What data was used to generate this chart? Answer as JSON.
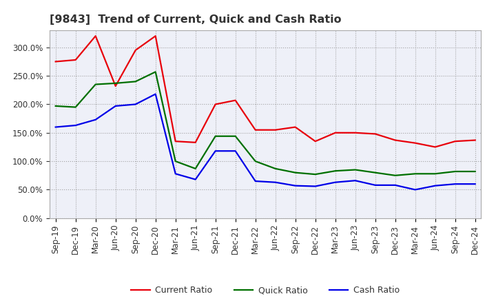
{
  "title": "[9843]  Trend of Current, Quick and Cash Ratio",
  "x_labels": [
    "Sep-19",
    "Dec-19",
    "Mar-20",
    "Jun-20",
    "Sep-20",
    "Dec-20",
    "Mar-21",
    "Jun-21",
    "Sep-21",
    "Dec-21",
    "Mar-22",
    "Jun-22",
    "Sep-22",
    "Dec-22",
    "Mar-23",
    "Jun-23",
    "Sep-23",
    "Dec-23",
    "Mar-24",
    "Jun-24",
    "Sep-24",
    "Dec-24"
  ],
  "current_ratio": [
    275,
    278,
    320,
    232,
    295,
    320,
    135,
    133,
    200,
    207,
    155,
    155,
    160,
    135,
    150,
    150,
    148,
    137,
    132,
    125,
    135,
    137
  ],
  "quick_ratio": [
    197,
    195,
    235,
    237,
    240,
    257,
    100,
    87,
    144,
    144,
    100,
    87,
    80,
    77,
    83,
    85,
    80,
    75,
    78,
    78,
    82,
    82
  ],
  "cash_ratio": [
    160,
    163,
    173,
    197,
    200,
    218,
    78,
    68,
    118,
    118,
    65,
    63,
    57,
    56,
    63,
    66,
    58,
    58,
    50,
    57,
    60,
    60
  ],
  "current_color": "#e8000a",
  "quick_color": "#007000",
  "cash_color": "#0000e8",
  "ylim": [
    0,
    330
  ],
  "yticks": [
    0,
    50,
    100,
    150,
    200,
    250,
    300
  ],
  "background_color": "#ffffff",
  "plot_bg_color": "#eef0f8",
  "grid_color": "#999999",
  "legend_labels": [
    "Current Ratio",
    "Quick Ratio",
    "Cash Ratio"
  ],
  "title_color": "#333333",
  "title_fontsize": 11.5,
  "tick_fontsize": 8.5
}
